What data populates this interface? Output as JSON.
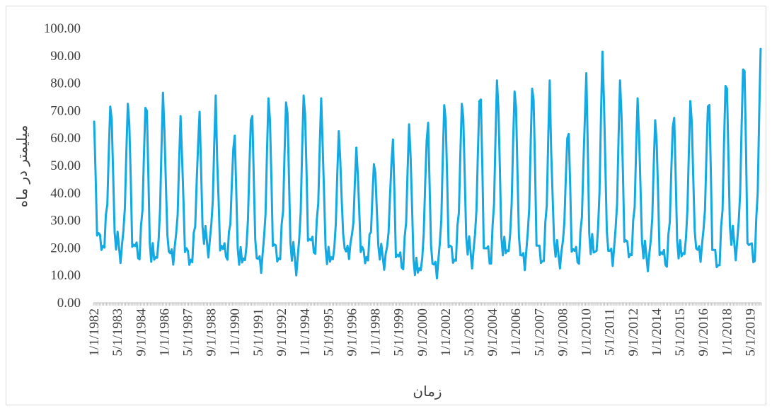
{
  "chart_data": {
    "type": "line",
    "title": "",
    "xlabel": "زمان",
    "ylabel": "میلیمتر در ماه",
    "ylim": [
      0,
      100
    ],
    "yticks": [
      "0.00",
      "10.00",
      "20.00",
      "30.00",
      "40.00",
      "50.00",
      "60.00",
      "70.00",
      "80.00",
      "90.00",
      "100.00"
    ],
    "xticks": [
      "1/1/1982",
      "5/1/1983",
      "9/1/1984",
      "1/1/1986",
      "5/1/1987",
      "9/1/1988",
      "1/1/1990",
      "5/1/1991",
      "9/1/1992",
      "1/1/1994",
      "5/1/1995",
      "9/1/1996",
      "1/1/1998",
      "5/1/1999",
      "9/1/2000",
      "1/1/2002",
      "5/1/2003",
      "9/1/2004",
      "1/1/2006",
      "5/1/2007",
      "9/1/2008",
      "1/1/2010",
      "5/1/2011",
      "9/1/2012",
      "1/1/2014",
      "5/1/2015",
      "9/1/2016",
      "1/1/2018",
      "5/1/2019"
    ],
    "x_start": "1/1/1982",
    "x_end": "12/1/2019",
    "annual_peaks": [
      {
        "year": 1982,
        "value": 71.5
      },
      {
        "year": 1983,
        "value": 72.5
      },
      {
        "year": 1984,
        "value": 71.0
      },
      {
        "year": 1985,
        "value": 76.5
      },
      {
        "year": 1986,
        "value": 68.0
      },
      {
        "year": 1987,
        "value": 58.0
      },
      {
        "year": 1988,
        "value": 75.5
      },
      {
        "year": 1989,
        "value": 56.0
      },
      {
        "year": 1990,
        "value": 66.5
      },
      {
        "year": 1991,
        "value": 74.5
      },
      {
        "year": 1992,
        "value": 73.0
      },
      {
        "year": 1993,
        "value": 75.5
      },
      {
        "year": 1994,
        "value": 74.5
      },
      {
        "year": 1995,
        "value": 62.5
      },
      {
        "year": 1996,
        "value": 56.5
      },
      {
        "year": 1997,
        "value": 50.5
      },
      {
        "year": 1998,
        "value": 51.0
      },
      {
        "year": 1999,
        "value": 65.0
      },
      {
        "year": 2000,
        "value": 59.0
      },
      {
        "year": 2001,
        "value": 72.0
      },
      {
        "year": 2002,
        "value": 72.5
      },
      {
        "year": 2003,
        "value": 73.5
      },
      {
        "year": 2004,
        "value": 81.0
      },
      {
        "year": 2005,
        "value": 77.0
      },
      {
        "year": 2006,
        "value": 78.0
      },
      {
        "year": 2007,
        "value": 81.0
      },
      {
        "year": 2008,
        "value": 60.0
      },
      {
        "year": 2009,
        "value": 67.0
      },
      {
        "year": 2010,
        "value": 91.5
      },
      {
        "year": 2011,
        "value": 81.0
      },
      {
        "year": 2012,
        "value": 74.5
      },
      {
        "year": 2013,
        "value": 66.5
      },
      {
        "year": 2014,
        "value": 64.0
      },
      {
        "year": 2015,
        "value": 73.5
      },
      {
        "year": 2016,
        "value": 71.5
      },
      {
        "year": 2017,
        "value": 79.0
      },
      {
        "year": 2018,
        "value": 85.0
      },
      {
        "year": 2019,
        "value": 92.5
      }
    ],
    "annual_minima": [
      16.5,
      14.5,
      13.5,
      11.0,
      12.5,
      11.5,
      16.5,
      14.0,
      10.5,
      9.5,
      12.0,
      10.0,
      15.5,
      11.0,
      14.5,
      12.5,
      12.0,
      10.0,
      7.0,
      7.5,
      11.5,
      12.5,
      11.5,
      13.5,
      10.5,
      11.0,
      12.5,
      12.0,
      13.0,
      12.0,
      13.5,
      11.5,
      11.0,
      12.5,
      13.5,
      9.5,
      15.5,
      12.0
    ],
    "grid": false,
    "line_color": "#13a9e3"
  }
}
